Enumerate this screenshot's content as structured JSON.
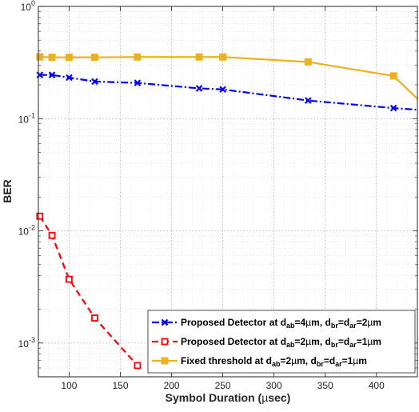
{
  "chart_data": {
    "type": "line",
    "xlabel": "Symbol Duration (µsec)",
    "ylabel": "BER",
    "xlim": [
      70,
      440
    ],
    "ylim": [
      0.0005,
      1
    ],
    "yscale": "log",
    "grid": true,
    "legend_position": "bottom-right",
    "x_ticks": [
      100,
      150,
      200,
      250,
      300,
      350,
      400
    ],
    "x_tick_labels": [
      "100",
      "150",
      "200",
      "250",
      "300",
      "350",
      "400"
    ],
    "y_ticks": [
      0.001,
      0.01,
      0.1,
      1
    ],
    "y_tick_labels": [
      {
        "base": "10",
        "exp": "-3"
      },
      {
        "base": "10",
        "exp": "-2"
      },
      {
        "base": "10",
        "exp": "-1"
      },
      {
        "base": "10",
        "exp": "0"
      }
    ],
    "series": [
      {
        "name": "Proposed Detector at dab=4µm, dbr=dar=2µm",
        "legend_parts": [
          {
            "t": "Proposed Detector at d"
          },
          {
            "t": "ab",
            "sub": true
          },
          {
            "t": "=4"
          },
          {
            "t": "µ",
            "normal": true
          },
          {
            "t": "m, d"
          },
          {
            "t": "br",
            "sub": true
          },
          {
            "t": "=d"
          },
          {
            "t": "ar",
            "sub": true
          },
          {
            "t": "=2"
          },
          {
            "t": "µ",
            "normal": true
          },
          {
            "t": "m"
          }
        ],
        "color": "#0000ff",
        "dash": "9,3,2,3",
        "marker": "x",
        "x": [
          71.4,
          83.3,
          100,
          125,
          166.7,
          227,
          250,
          333.3,
          416.7,
          440
        ],
        "y": [
          0.245,
          0.245,
          0.232,
          0.214,
          0.208,
          0.186,
          0.182,
          0.145,
          0.124,
          0.12
        ],
        "marker_count": 9
      },
      {
        "name": "Proposed Detector at dab=2µm, dbr=dar=1µm",
        "legend_parts": [
          {
            "t": "Proposed Detector at d"
          },
          {
            "t": "ab",
            "sub": true
          },
          {
            "t": "=2"
          },
          {
            "t": "µ",
            "normal": true
          },
          {
            "t": "m, d"
          },
          {
            "t": "br",
            "sub": true
          },
          {
            "t": "=d"
          },
          {
            "t": "ar",
            "sub": true
          },
          {
            "t": "=1"
          },
          {
            "t": "µ",
            "normal": true
          },
          {
            "t": "m"
          }
        ],
        "color": "#ff0000",
        "dash": "8,5",
        "marker": "square-open",
        "x": [
          71.4,
          83.3,
          100,
          125,
          166.7
        ],
        "y": [
          0.0135,
          0.0091,
          0.0037,
          0.00167,
          0.00063
        ],
        "marker_count": 5
      },
      {
        "name": "Fixed threshold at dab=2µm, dbr=dar=1µm",
        "legend_parts": [
          {
            "t": "Fixed threshold at d"
          },
          {
            "t": "ab",
            "sub": true
          },
          {
            "t": "=2"
          },
          {
            "t": "µ",
            "normal": true
          },
          {
            "t": "m,  d"
          },
          {
            "t": "br",
            "sub": true
          },
          {
            "t": "=d"
          },
          {
            "t": "ar",
            "sub": true
          },
          {
            "t": "=1"
          },
          {
            "t": "µ",
            "normal": true
          },
          {
            "t": "m"
          }
        ],
        "color": "#edb120",
        "dash": "",
        "marker": "square-filled",
        "x": [
          71.4,
          83.3,
          100,
          125,
          166.7,
          227,
          250,
          333.3,
          416.7,
          440
        ],
        "y": [
          0.355,
          0.352,
          0.352,
          0.352,
          0.354,
          0.354,
          0.354,
          0.32,
          0.24,
          0.15
        ],
        "marker_count": 9
      }
    ]
  }
}
